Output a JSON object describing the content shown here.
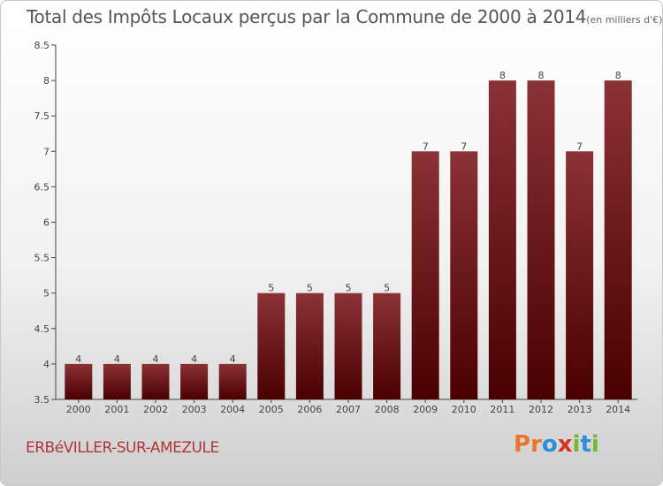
{
  "chart_data": {
    "type": "bar",
    "title": "Total des Impôts Locaux perçus par la Commune de 2000 à 2014",
    "unit_label": "(en milliers d'€)",
    "xlabel": "",
    "ylabel": "",
    "categories": [
      "2000",
      "2001",
      "2002",
      "2003",
      "2004",
      "2005",
      "2006",
      "2007",
      "2008",
      "2009",
      "2010",
      "2011",
      "2012",
      "2013",
      "2014"
    ],
    "values": [
      4,
      4,
      4,
      4,
      4,
      5,
      5,
      5,
      5,
      7,
      7,
      8,
      8,
      7,
      8
    ],
    "ylim": [
      3.5,
      8.5
    ],
    "yticks": [
      "3.5",
      "4",
      "4.5",
      "5",
      "5.5",
      "6",
      "6.5",
      "7",
      "7.5",
      "8",
      "8.5"
    ],
    "grid": false,
    "colors": {
      "bar_top": "#8b3236",
      "bar_bottom": "#4a0000",
      "axis": "#444444"
    }
  },
  "footer": {
    "commune": "ERBéVILLER-SUR-AMEZULE",
    "logo_letters": [
      "P",
      "r",
      "o",
      "x",
      "i",
      "t",
      "i"
    ],
    "logo_colors": [
      "#e8772a",
      "#e8772a",
      "#2a8fd6",
      "#d9302c",
      "#7ab52f",
      "#2a8fd6",
      "#7ab52f"
    ]
  }
}
